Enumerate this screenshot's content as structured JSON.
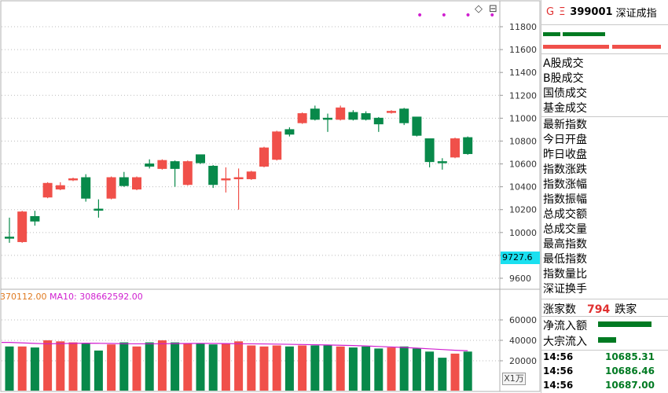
{
  "header": {
    "g_label": "G",
    "mark_label": "Ξ",
    "code": "399001",
    "name": "深证成指"
  },
  "price_tag": "9727.6",
  "dots": "• • • •",
  "icons": {
    "diamond": "◇",
    "square": "⊟"
  },
  "indicator": {
    "left_value": "370112.00",
    "ma10_label": "MA10: 308662592.00"
  },
  "unit_label": "X1万",
  "side_labels_a": [
    "A股成交",
    "B股成交",
    "国债成交",
    "基金成交"
  ],
  "side_labels_b": [
    "最新指数",
    "今日开盘",
    "昨日收盘",
    "指数涨跌",
    "指数涨幅",
    "指数振幅",
    "总成交额",
    "总成交量",
    "最高指数",
    "最低指数",
    "指数量比",
    "深证换手"
  ],
  "advance": {
    "up_label": "涨家数",
    "count": "794",
    "down_label": "跌家"
  },
  "flows": [
    {
      "label": "净流入额",
      "fill": 0.95
    },
    {
      "label": "大宗流入",
      "fill": 0.32
    }
  ],
  "ticks": [
    {
      "time": "14:56",
      "price": "10685.31"
    },
    {
      "time": "14:56",
      "price": "10686.46"
    },
    {
      "time": "14:56",
      "price": "10687.00"
    }
  ],
  "colors": {
    "up": "#f0504a",
    "down": "#08894a",
    "ma": "#d020d0",
    "ma_alt": "#e07a20",
    "accent": "#1ae0f0"
  },
  "chart_data": {
    "type": "candlestick",
    "y_ticks": [
      "11800",
      "11600",
      "11400",
      "11200",
      "11000",
      "10800",
      "10600",
      "10400",
      "10200",
      "10000",
      "9800",
      "9600"
    ],
    "ylim": [
      9500,
      11900
    ],
    "vol_ticks": [
      "60000",
      "40000",
      "20000"
    ],
    "vol_ylim": [
      0,
      70000
    ],
    "candles": [
      {
        "o": 9950,
        "c": 9960,
        "h": 10130,
        "l": 9910,
        "up": false
      },
      {
        "o": 9920,
        "c": 10180,
        "h": 10190,
        "l": 9910,
        "up": true
      },
      {
        "o": 10140,
        "c": 10100,
        "h": 10190,
        "l": 10060,
        "up": false
      },
      {
        "o": 10310,
        "c": 10430,
        "h": 10440,
        "l": 10300,
        "up": true
      },
      {
        "o": 10380,
        "c": 10410,
        "h": 10440,
        "l": 10370,
        "up": true
      },
      {
        "o": 10470,
        "c": 10460,
        "h": 10480,
        "l": 10450,
        "up": true
      },
      {
        "o": 10480,
        "c": 10300,
        "h": 10510,
        "l": 10270,
        "up": false
      },
      {
        "o": 10200,
        "c": 10205,
        "h": 10290,
        "l": 10130,
        "up": false
      },
      {
        "o": 10300,
        "c": 10480,
        "h": 10490,
        "l": 10290,
        "up": true
      },
      {
        "o": 10480,
        "c": 10410,
        "h": 10530,
        "l": 10400,
        "up": false
      },
      {
        "o": 10380,
        "c": 10480,
        "h": 10490,
        "l": 10370,
        "up": true
      },
      {
        "o": 10600,
        "c": 10580,
        "h": 10640,
        "l": 10560,
        "up": false
      },
      {
        "o": 10560,
        "c": 10630,
        "h": 10640,
        "l": 10550,
        "up": true
      },
      {
        "o": 10620,
        "c": 10560,
        "h": 10630,
        "l": 10400,
        "up": false
      },
      {
        "o": 10420,
        "c": 10620,
        "h": 10630,
        "l": 10410,
        "up": true
      },
      {
        "o": 10680,
        "c": 10610,
        "h": 10680,
        "l": 10600,
        "up": false
      },
      {
        "o": 10580,
        "c": 10420,
        "h": 10590,
        "l": 10390,
        "up": false
      },
      {
        "o": 10460,
        "c": 10470,
        "h": 10570,
        "l": 10350,
        "up": true
      },
      {
        "o": 10480,
        "c": 10480,
        "h": 10560,
        "l": 10200,
        "up": true
      },
      {
        "o": 10470,
        "c": 10530,
        "h": 10540,
        "l": 10460,
        "up": true
      },
      {
        "o": 10580,
        "c": 10740,
        "h": 10750,
        "l": 10570,
        "up": true
      },
      {
        "o": 10640,
        "c": 10880,
        "h": 10890,
        "l": 10630,
        "up": true
      },
      {
        "o": 10900,
        "c": 10860,
        "h": 10920,
        "l": 10840,
        "up": false
      },
      {
        "o": 10960,
        "c": 11040,
        "h": 11050,
        "l": 10950,
        "up": true
      },
      {
        "o": 11080,
        "c": 10990,
        "h": 11110,
        "l": 10980,
        "up": false
      },
      {
        "o": 11000,
        "c": 10990,
        "h": 11040,
        "l": 10880,
        "up": false
      },
      {
        "o": 10990,
        "c": 11090,
        "h": 11110,
        "l": 10980,
        "up": true
      },
      {
        "o": 11050,
        "c": 10990,
        "h": 11070,
        "l": 10980,
        "up": false
      },
      {
        "o": 11040,
        "c": 10990,
        "h": 11060,
        "l": 10980,
        "up": false
      },
      {
        "o": 11000,
        "c": 10950,
        "h": 11010,
        "l": 10880,
        "up": false
      },
      {
        "o": 11060,
        "c": 11060,
        "h": 11070,
        "l": 11040,
        "up": true
      },
      {
        "o": 11080,
        "c": 10960,
        "h": 11090,
        "l": 10940,
        "up": false
      },
      {
        "o": 11010,
        "c": 10850,
        "h": 11010,
        "l": 10840,
        "up": false
      },
      {
        "o": 10820,
        "c": 10620,
        "h": 10820,
        "l": 10570,
        "up": false
      },
      {
        "o": 10620,
        "c": 10610,
        "h": 10650,
        "l": 10550,
        "up": false
      },
      {
        "o": 10660,
        "c": 10820,
        "h": 10830,
        "l": 10650,
        "up": true
      },
      {
        "o": 10830,
        "c": 10690,
        "h": 10840,
        "l": 10680,
        "up": false
      }
    ],
    "volumes": [
      34000,
      34000,
      33000,
      40000,
      39000,
      38000,
      37000,
      30000,
      36000,
      38000,
      34000,
      38000,
      40000,
      38000,
      37000,
      37000,
      36000,
      37000,
      39000,
      35000,
      34000,
      35000,
      34000,
      35000,
      35000,
      35000,
      34000,
      33000,
      34000,
      32000,
      33000,
      34000,
      32000,
      29000,
      23000,
      27000,
      29000
    ],
    "ma_line": [
      38000,
      37500,
      37000,
      36600,
      36800,
      37000,
      37200,
      37100,
      36900,
      36700,
      36600,
      36600,
      36700,
      36800,
      36900,
      37000,
      36900,
      36800,
      36700,
      36600,
      36500,
      36300,
      36100,
      35900,
      35700,
      35500,
      35200,
      34900,
      34500,
      34000,
      33500,
      33000,
      32400,
      31700,
      31000,
      30300,
      29800
    ]
  }
}
